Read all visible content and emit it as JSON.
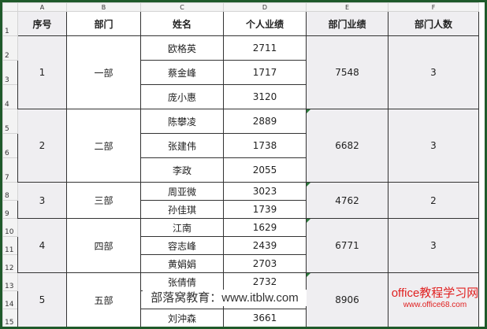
{
  "columns": [
    "A",
    "B",
    "C",
    "D",
    "E",
    "F"
  ],
  "rows": [
    "1",
    "2",
    "3",
    "4",
    "5",
    "6",
    "7",
    "8",
    "9",
    "10",
    "11",
    "12",
    "13",
    "14",
    "15"
  ],
  "headers": [
    "序号",
    "部门",
    "姓名",
    "个人业绩",
    "部门业绩",
    "部门人数"
  ],
  "groups": [
    {
      "no": "1",
      "dept": "一部",
      "total": "7548",
      "count": "3",
      "members": [
        {
          "name": "欧格英",
          "score": "2711"
        },
        {
          "name": "蔡金峰",
          "score": "1717"
        },
        {
          "name": "庞小惠",
          "score": "3120"
        }
      ]
    },
    {
      "no": "2",
      "dept": "二部",
      "total": "6682",
      "count": "3",
      "members": [
        {
          "name": "陈攀凌",
          "score": "2889"
        },
        {
          "name": "张建伟",
          "score": "1738"
        },
        {
          "name": "李政",
          "score": "2055"
        }
      ]
    },
    {
      "no": "3",
      "dept": "三部",
      "total": "4762",
      "count": "2",
      "members": [
        {
          "name": "周亚微",
          "score": "3023"
        },
        {
          "name": "孙佳琪",
          "score": "1739"
        }
      ]
    },
    {
      "no": "4",
      "dept": "四部",
      "total": "6771",
      "count": "3",
      "members": [
        {
          "name": "江南",
          "score": "1629"
        },
        {
          "name": "容志峰",
          "score": "2439"
        },
        {
          "name": "黄娟娟",
          "score": "2703"
        }
      ]
    },
    {
      "no": "5",
      "dept": "五部",
      "total": "8906",
      "count": "",
      "members": [
        {
          "name": "张倩倩",
          "score": "2732"
        },
        {
          "name": "",
          "score": ""
        },
        {
          "name": "刘沖森",
          "score": "3661"
        }
      ]
    }
  ],
  "watermarks": {
    "left": "部落窝教育：www.itblw.com",
    "right_title": "office教程学习网",
    "right_url": "www.office68.com"
  }
}
